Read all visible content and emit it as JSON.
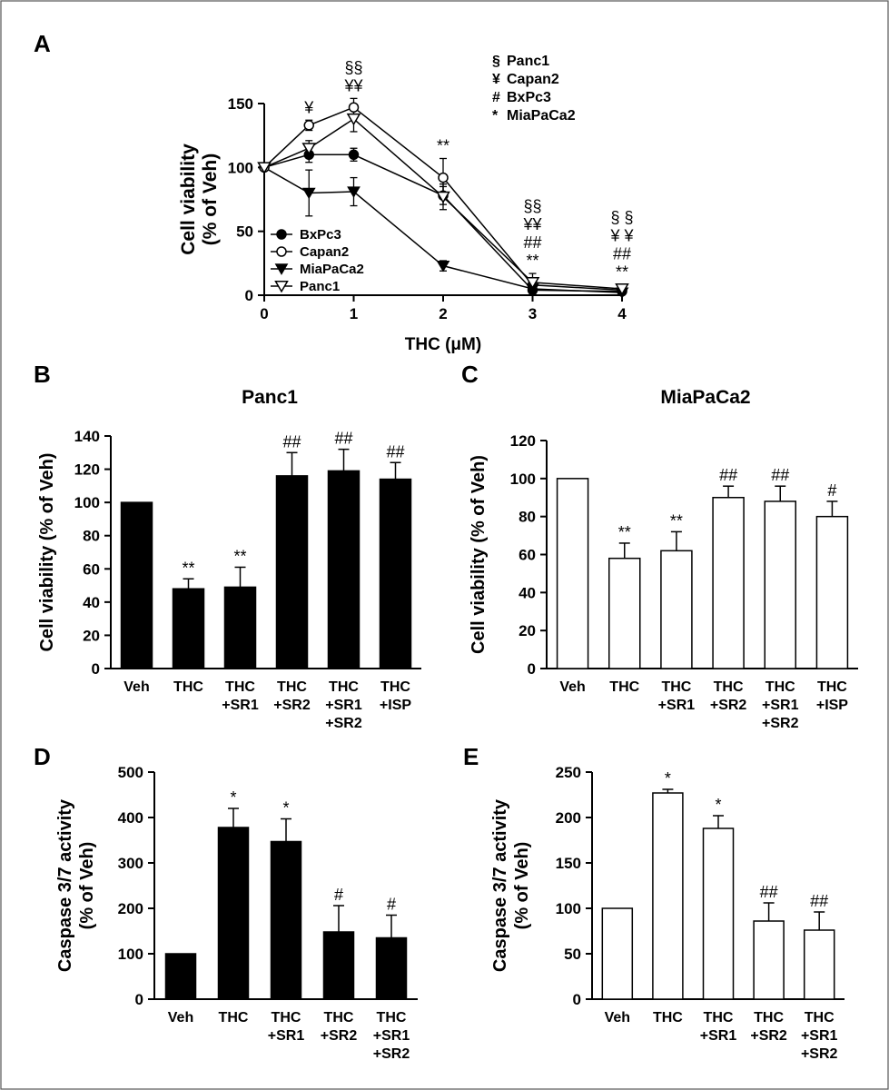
{
  "chart_data": [
    {
      "panel": "A",
      "type": "line",
      "title": "",
      "xlabel": "THC (μM)",
      "ylabel": [
        "Cell viability",
        "(% of Veh)"
      ],
      "xlim": [
        0,
        4
      ],
      "ylim": [
        0,
        150
      ],
      "xticks": [
        "0",
        "1",
        "2",
        "3",
        "4"
      ],
      "yticks": [
        "0",
        "50",
        "100",
        "150"
      ],
      "x": [
        0,
        0.5,
        1,
        2,
        3,
        4
      ],
      "series": [
        {
          "name": "BxPc3",
          "marker": "filled-circle",
          "values": [
            100,
            110,
            110,
            78,
            4,
            3
          ],
          "errors": [
            0,
            6,
            5,
            7,
            3,
            2
          ]
        },
        {
          "name": "Capan2",
          "marker": "open-circle",
          "values": [
            100,
            133,
            147,
            92,
            8,
            4
          ],
          "errors": [
            0,
            4,
            7,
            15,
            5,
            2
          ]
        },
        {
          "name": "MiaPaCa2",
          "marker": "filled-triangle",
          "values": [
            100,
            80,
            81,
            23,
            5,
            2
          ],
          "errors": [
            0,
            18,
            11,
            4,
            2,
            1
          ]
        },
        {
          "name": "Panc1",
          "marker": "open-triangle",
          "values": [
            100,
            115,
            138,
            77,
            10,
            5
          ],
          "errors": [
            0,
            6,
            10,
            10,
            7,
            3
          ]
        }
      ],
      "sig_key": [
        {
          "symbol": "§",
          "name": "Panc1"
        },
        {
          "symbol": "¥",
          "name": "Capan2"
        },
        {
          "symbol": "#",
          "name": "BxPc3"
        },
        {
          "symbol": "*",
          "name": "MiaPaCa2"
        }
      ],
      "annotations": [
        {
          "x": 0.5,
          "lines": [
            "¥"
          ]
        },
        {
          "x": 1,
          "lines": [
            "§§",
            "¥¥"
          ]
        },
        {
          "x": 2,
          "lines": [
            "**"
          ]
        },
        {
          "x": 3,
          "lines": [
            "§§",
            "¥¥",
            "##",
            "**"
          ]
        },
        {
          "x": 4,
          "lines": [
            "§ §",
            "¥ ¥",
            "##",
            "**"
          ]
        }
      ]
    },
    {
      "panel": "B",
      "type": "bar",
      "title": "Panc1",
      "fill": "#000000",
      "ylabel": "Cell viability (% of Veh)",
      "ylim": [
        0,
        140
      ],
      "yticks": [
        "0",
        "20",
        "40",
        "60",
        "80",
        "100",
        "120",
        "140"
      ],
      "categories": [
        [
          "Veh"
        ],
        [
          "THC"
        ],
        [
          "THC",
          "+SR1"
        ],
        [
          "THC",
          "+SR2"
        ],
        [
          "THC",
          "+SR1",
          "+SR2"
        ],
        [
          "THC",
          "+ISP"
        ]
      ],
      "values": [
        100,
        48,
        49,
        116,
        119,
        114
      ],
      "errors": [
        0,
        6,
        12,
        14,
        13,
        10
      ],
      "labels": [
        "",
        "**",
        "**",
        "##",
        "##",
        "##"
      ]
    },
    {
      "panel": "C",
      "type": "bar",
      "title": "MiaPaCa2",
      "fill": "#ffffff",
      "ylabel": "Cell viability (% of Veh)",
      "ylim": [
        0,
        120
      ],
      "yticks": [
        "0",
        "20",
        "40",
        "60",
        "80",
        "100",
        "120"
      ],
      "categories": [
        [
          "Veh"
        ],
        [
          "THC"
        ],
        [
          "THC",
          "+SR1"
        ],
        [
          "THC",
          "+SR2"
        ],
        [
          "THC",
          "+SR1",
          "+SR2"
        ],
        [
          "THC",
          "+ISP"
        ]
      ],
      "values": [
        100,
        58,
        62,
        90,
        88,
        80
      ],
      "errors": [
        0,
        8,
        10,
        6,
        8,
        8
      ],
      "labels": [
        "",
        "**",
        "**",
        "##",
        "##",
        "#"
      ]
    },
    {
      "panel": "D",
      "type": "bar",
      "title": "",
      "fill": "#000000",
      "ylabel": [
        "Caspase 3/7 activity",
        "(% of Veh)"
      ],
      "ylim": [
        0,
        500
      ],
      "yticks": [
        "0",
        "100",
        "200",
        "300",
        "400",
        "500"
      ],
      "categories": [
        [
          "Veh"
        ],
        [
          "THC"
        ],
        [
          "THC",
          "+SR1"
        ],
        [
          "THC",
          "+SR2"
        ],
        [
          "THC",
          "+SR1",
          "+SR2"
        ]
      ],
      "values": [
        100,
        378,
        347,
        148,
        135
      ],
      "errors": [
        0,
        42,
        50,
        58,
        50
      ],
      "labels": [
        "",
        "*",
        "*",
        "#",
        "#"
      ]
    },
    {
      "panel": "E",
      "type": "bar",
      "title": "",
      "fill": "#ffffff",
      "ylabel": [
        "Caspase 3/7 activity",
        "(% of Veh)"
      ],
      "ylim": [
        0,
        250
      ],
      "yticks": [
        "0",
        "50",
        "100",
        "150",
        "200",
        "250"
      ],
      "categories": [
        [
          "Veh"
        ],
        [
          "THC"
        ],
        [
          "THC",
          "+SR1"
        ],
        [
          "THC",
          "+SR2"
        ],
        [
          "THC",
          "+SR1",
          "+SR2"
        ]
      ],
      "values": [
        100,
        227,
        188,
        86,
        76
      ],
      "errors": [
        0,
        4,
        14,
        20,
        20
      ],
      "labels": [
        "",
        "*",
        "*",
        "##",
        "##"
      ]
    }
  ]
}
